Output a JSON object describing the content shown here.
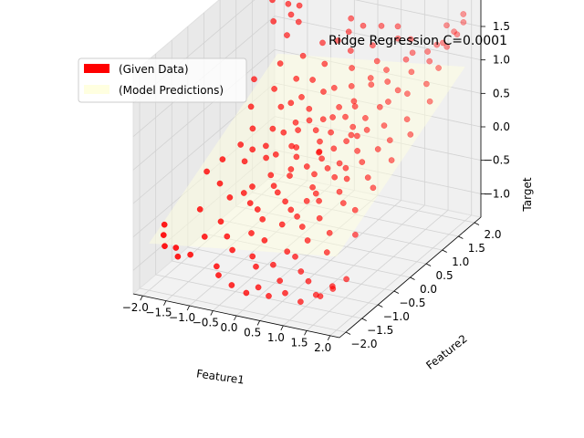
{
  "chart_data": {
    "type": "scatter",
    "projection": "3d",
    "title": "Ridge Regression C=0.0001",
    "xlabel": "Feature1",
    "ylabel": "Feature2",
    "zlabel": "Target",
    "xlim": [
      -2.2,
      2.2
    ],
    "ylim": [
      -2.2,
      2.2
    ],
    "zlim": [
      -1.35,
      1.95
    ],
    "xticks": [
      -2.0,
      -1.5,
      -1.0,
      -0.5,
      0.0,
      0.5,
      1.0,
      1.5,
      2.0
    ],
    "yticks": [
      -2.0,
      -1.5,
      -1.0,
      -0.5,
      0.0,
      0.5,
      1.0,
      1.5,
      2.0
    ],
    "zticks": [
      -1.0,
      -0.5,
      0.0,
      0.5,
      1.0,
      1.5
    ],
    "xtick_labels": [
      "−2.0",
      "−1.5",
      "−1.0",
      "−0.5",
      "0.0",
      "0.5",
      "1.0",
      "1.5",
      "2.0"
    ],
    "ytick_labels": [
      "−2.0",
      "−1.5",
      "−1.0",
      "−0.5",
      "0.0",
      "0.5",
      "1.0",
      "1.5",
      "2.0"
    ],
    "ztick_labels": [
      "−1.0",
      "−0.5",
      "0.0",
      "0.5",
      "1.0",
      "1.5"
    ],
    "grid": true,
    "legend_position": "top-left",
    "legend": [
      {
        "label": "(Given Data)",
        "color": "#ff0000"
      },
      {
        "label": "(Model Predictions)",
        "color": "#ffffe0"
      }
    ],
    "surface": {
      "plane": {
        "intercept": 0.15,
        "coef_x1": 0.1,
        "coef_x2": 0.3
      },
      "x1_range": [
        -2.0,
        2.0
      ],
      "x2_range": [
        -2.0,
        2.0
      ],
      "color": "#ffffe0",
      "alpha": 0.5
    },
    "series": [
      {
        "color": "#ff0000",
        "points": [
          {
            "x1": 0.18,
            "x2": 0.12,
            "y": 0.18
          },
          {
            "x1": -0.35,
            "x2": 0.03,
            "y": 0.22
          },
          {
            "x1": 0.62,
            "x2": 0.47,
            "y": 0.35
          },
          {
            "x1": 0.42,
            "x2": -0.62,
            "y": -0.22
          },
          {
            "x1": -0.72,
            "x2": 0.32,
            "y": 0.25
          },
          {
            "x1": 0.95,
            "x2": 0.18,
            "y": 0.28
          },
          {
            "x1": -0.28,
            "x2": 0.92,
            "y": 0.68
          },
          {
            "x1": 0.12,
            "x2": -0.95,
            "y": -0.48
          },
          {
            "x1": 0.78,
            "x2": -0.28,
            "y": 0.05
          },
          {
            "x1": -0.88,
            "x2": -0.42,
            "y": -0.28
          },
          {
            "x1": 0.33,
            "x2": 0.71,
            "y": 0.48
          },
          {
            "x1": -0.52,
            "x2": -0.78,
            "y": -0.42
          },
          {
            "x1": 1.22,
            "x2": 0.62,
            "y": 0.52
          },
          {
            "x1": -0.15,
            "x2": -0.32,
            "y": -0.05
          },
          {
            "x1": 0.58,
            "x2": 1.15,
            "y": 0.82
          },
          {
            "x1": -1.05,
            "x2": 0.72,
            "y": 0.42
          },
          {
            "x1": 0.85,
            "x2": -0.85,
            "y": -0.32
          },
          {
            "x1": -0.62,
            "x2": 0.55,
            "y": 0.32
          },
          {
            "x1": 0.22,
            "x2": 0.42,
            "y": 0.35
          },
          {
            "x1": 1.45,
            "x2": -0.22,
            "y": 0.12
          },
          {
            "x1": -1.25,
            "x2": -0.12,
            "y": -0.08
          },
          {
            "x1": 0.05,
            "x2": 1.32,
            "y": 0.92
          },
          {
            "x1": 0.68,
            "x2": 0.02,
            "y": 0.12
          },
          {
            "x1": -0.42,
            "x2": -1.12,
            "y": -0.62
          },
          {
            "x1": 1.08,
            "x2": 0.95,
            "y": 0.72
          },
          {
            "x1": -0.95,
            "x2": 1.05,
            "y": 0.72
          },
          {
            "x1": 0.48,
            "x2": -1.32,
            "y": -0.68
          },
          {
            "x1": -0.08,
            "x2": 0.62,
            "y": 0.42
          },
          {
            "x1": 0.92,
            "x2": 0.52,
            "y": 0.45
          },
          {
            "x1": -0.72,
            "x2": -0.72,
            "y": -0.38
          },
          {
            "x1": 0.28,
            "x2": -0.18,
            "y": -0.02
          },
          {
            "x1": -1.42,
            "x2": 0.38,
            "y": 0.18
          },
          {
            "x1": 1.32,
            "x2": 0.28,
            "y": 0.32
          },
          {
            "x1": -0.25,
            "x2": -0.55,
            "y": -0.22
          },
          {
            "x1": 0.72,
            "x2": 1.42,
            "y": 0.95
          },
          {
            "x1": -0.55,
            "x2": 1.35,
            "y": 0.88
          },
          {
            "x1": 0.15,
            "x2": -0.72,
            "y": -0.35
          },
          {
            "x1": 1.02,
            "x2": -0.48,
            "y": -0.05
          },
          {
            "x1": -1.18,
            "x2": -0.68,
            "y": -0.38
          },
          {
            "x1": 0.42,
            "x2": 0.88,
            "y": 0.58
          },
          {
            "x1": -0.38,
            "x2": 0.22,
            "y": 0.12
          },
          {
            "x1": 1.62,
            "x2": 0.75,
            "y": 0.62
          },
          {
            "x1": -0.82,
            "x2": -0.08,
            "y": 0.02
          },
          {
            "x1": 0.55,
            "x2": -0.95,
            "y": -0.45
          },
          {
            "x1": -0.12,
            "x2": 1.02,
            "y": 0.72
          },
          {
            "x1": 0.88,
            "x2": 1.22,
            "y": 0.88
          },
          {
            "x1": -1.35,
            "x2": 0.95,
            "y": 0.55
          },
          {
            "x1": 0.32,
            "x2": -1.52,
            "y": -0.82
          },
          {
            "x1": 1.18,
            "x2": -1.02,
            "y": -0.42
          },
          {
            "x1": -0.62,
            "x2": -1.42,
            "y": -0.78
          },
          {
            "x1": 0.08,
            "x2": 0.28,
            "y": 0.25
          },
          {
            "x1": 1.52,
            "x2": -0.72,
            "y": -0.15
          },
          {
            "x1": -1.55,
            "x2": -0.45,
            "y": -0.32
          },
          {
            "x1": 0.62,
            "x2": 0.32,
            "y": 0.32
          },
          {
            "x1": -0.45,
            "x2": 0.72,
            "y": 0.48
          },
          {
            "x1": 0.98,
            "x2": 1.65,
            "y": 1.05
          },
          {
            "x1": -0.18,
            "x2": 1.62,
            "y": 1.02
          },
          {
            "x1": 0.38,
            "x2": -0.38,
            "y": -0.12
          },
          {
            "x1": -0.98,
            "x2": 0.15,
            "y": 0.08
          },
          {
            "x1": 1.72,
            "x2": 0.12,
            "y": 0.28
          },
          {
            "x1": -0.32,
            "x2": -0.92,
            "y": -0.48
          },
          {
            "x1": 0.75,
            "x2": 0.72,
            "y": 0.52
          },
          {
            "x1": -1.62,
            "x2": 0.62,
            "y": 0.38
          },
          {
            "x1": 0.22,
            "x2": 1.72,
            "y": 1.12
          },
          {
            "x1": 1.28,
            "x2": 1.38,
            "y": 1.02
          },
          {
            "x1": -0.78,
            "x2": 1.62,
            "y": 1.05
          },
          {
            "x1": 0.52,
            "x2": -0.12,
            "y": 0.08
          },
          {
            "x1": -0.05,
            "x2": -1.25,
            "y": -0.62
          },
          {
            "x1": 1.12,
            "x2": 0.08,
            "y": 0.18
          },
          {
            "x1": -1.12,
            "x2": -1.05,
            "y": -0.58
          },
          {
            "x1": 0.12,
            "x2": 0.82,
            "y": 0.55
          },
          {
            "x1": 0.82,
            "x2": -1.18,
            "y": -0.52
          },
          {
            "x1": -0.68,
            "x2": 0.02,
            "y": 0.05
          },
          {
            "x1": 1.42,
            "x2": 1.05,
            "y": 0.85
          },
          {
            "x1": -1.45,
            "x2": 1.28,
            "y": 0.78
          },
          {
            "x1": 0.45,
            "x2": 1.52,
            "y": 1.0
          },
          {
            "x1": -0.22,
            "x2": -0.18,
            "y": -0.02
          },
          {
            "x1": 1.65,
            "x2": -0.35,
            "y": 0.05
          },
          {
            "x1": -1.72,
            "x2": -0.12,
            "y": -0.12
          },
          {
            "x1": 0.02,
            "x2": -1.62,
            "y": -0.85
          },
          {
            "x1": 0.68,
            "x2": -0.62,
            "y": -0.18
          },
          {
            "x1": -0.48,
            "x2": 0.42,
            "y": 0.28
          },
          {
            "x1": 0.95,
            "x2": 0.88,
            "y": 0.65
          },
          {
            "x1": -0.88,
            "x2": 0.78,
            "y": 0.48
          },
          {
            "x1": 0.28,
            "x2": 0.05,
            "y": 0.12
          },
          {
            "x1": -0.12,
            "x2": 0.45,
            "y": 0.32
          },
          {
            "x1": 1.35,
            "x2": -1.35,
            "y": -0.55
          },
          {
            "x1": -1.28,
            "x2": -1.32,
            "y": -0.72
          },
          {
            "x1": 0.58,
            "x2": 0.58,
            "y": 0.42
          },
          {
            "x1": -0.58,
            "x2": -0.28,
            "y": -0.12
          },
          {
            "x1": 1.05,
            "x2": 1.75,
            "y": 1.12
          },
          {
            "x1": -0.38,
            "x2": 1.85,
            "y": 1.18
          },
          {
            "x1": 0.35,
            "x2": -0.82,
            "y": -0.38
          },
          {
            "x1": -1.02,
            "x2": 0.42,
            "y": 0.22
          },
          {
            "x1": 1.85,
            "x2": 0.52,
            "y": 0.52
          },
          {
            "x1": -0.75,
            "x2": -1.72,
            "y": -0.92
          },
          {
            "x1": 0.18,
            "x2": 1.12,
            "y": 0.75
          },
          {
            "x1": 0.88,
            "x2": -0.08,
            "y": 0.12
          },
          {
            "x1": -1.52,
            "x2": 0.15,
            "y": 0.02
          },
          {
            "x1": 0.65,
            "x2": 1.88,
            "y": 1.22
          },
          {
            "x1": -0.02,
            "x2": -0.65,
            "y": -0.28
          },
          {
            "x1": 1.22,
            "x2": -0.65,
            "y": -0.12
          },
          {
            "x1": -0.65,
            "x2": 1.12,
            "y": 0.72
          },
          {
            "x1": 0.42,
            "x2": 0.22,
            "y": 0.22
          },
          {
            "x1": -1.22,
            "x2": 0.08,
            "y": 0.02
          },
          {
            "x1": 1.55,
            "x2": 1.55,
            "y": 1.15
          },
          {
            "x1": -1.85,
            "x2": 1.05,
            "y": 0.58
          },
          {
            "x1": 0.25,
            "x2": -1.88,
            "y": -1.02
          },
          {
            "x1": 0.98,
            "x2": -1.62,
            "y": -0.78
          },
          {
            "x1": -0.28,
            "x2": 0.08,
            "y": 0.05
          },
          {
            "x1": 0.78,
            "x2": 0.42,
            "y": 0.38
          },
          {
            "x1": -0.95,
            "x2": -0.58,
            "y": -0.32
          },
          {
            "x1": 1.75,
            "x2": -1.05,
            "y": -0.35
          },
          {
            "x1": -1.68,
            "x2": -0.88,
            "y": -0.55
          },
          {
            "x1": 0.08,
            "x2": 0.68,
            "y": 0.45
          },
          {
            "x1": 0.52,
            "x2": -0.48,
            "y": -0.15
          },
          {
            "x1": -0.42,
            "x2": -0.42,
            "y": -0.2
          },
          {
            "x1": 1.15,
            "x2": 1.15,
            "y": 0.82
          },
          {
            "x1": -1.08,
            "x2": 1.45,
            "y": 0.88
          },
          {
            "x1": 0.35,
            "x2": 0.95,
            "y": 0.62
          },
          {
            "x1": -0.15,
            "x2": -1.48,
            "y": -0.78
          },
          {
            "x1": 1.48,
            "x2": 0.42,
            "y": 0.42
          },
          {
            "x1": -0.72,
            "x2": 0.88,
            "y": 0.55
          },
          {
            "x1": 0.72,
            "x2": -1.42,
            "y": -0.68
          },
          {
            "x1": -1.38,
            "x2": -1.62,
            "y": -0.88
          },
          {
            "x1": 0.15,
            "x2": 0.15,
            "y": 0.15
          },
          {
            "x1": 1.02,
            "x2": -0.25,
            "y": 0.05
          },
          {
            "x1": -0.52,
            "x2": 1.72,
            "y": 1.08
          },
          {
            "x1": 0.62,
            "x2": -1.75,
            "y": -0.92
          },
          {
            "x1": -1.92,
            "x2": -0.32,
            "y": -0.25
          },
          {
            "x1": 1.92,
            "x2": 1.02,
            "y": 0.82
          },
          {
            "x1": -0.35,
            "x2": 0.58,
            "y": 0.38
          },
          {
            "x1": 0.48,
            "x2": 1.28,
            "y": 0.85
          },
          {
            "x1": -0.85,
            "x2": -1.25,
            "y": -0.68
          },
          {
            "x1": 1.25,
            "x2": -1.78,
            "y": -0.82
          },
          {
            "x1": -1.58,
            "x2": 1.68,
            "y": 1.02
          },
          {
            "x1": 0.05,
            "x2": -0.08,
            "y": 0.02
          },
          {
            "x1": -1.78,
            "x2": 1.55,
            "y": 1.25
          },
          {
            "x1": -1.65,
            "x2": 1.82,
            "y": 1.42
          },
          {
            "x1": -1.92,
            "x2": 1.72,
            "y": 1.48
          },
          {
            "x1": -1.48,
            "x2": 1.92,
            "y": 1.38
          },
          {
            "x1": -1.72,
            "x2": 1.95,
            "y": 1.55
          },
          {
            "x1": -1.58,
            "x2": 2.02,
            "y": 1.62
          },
          {
            "x1": -1.82,
            "x2": 1.88,
            "y": 1.72
          },
          {
            "x1": -1.98,
            "x2": 1.82,
            "y": 1.68
          },
          {
            "x1": -1.52,
            "x2": 1.72,
            "y": 1.32
          },
          {
            "x1": -1.38,
            "x2": 1.75,
            "y": 1.22
          },
          {
            "x1": 1.52,
            "x2": 1.82,
            "y": 1.28
          },
          {
            "x1": 1.72,
            "x2": 1.72,
            "y": 1.38
          },
          {
            "x1": 1.92,
            "x2": 1.55,
            "y": 1.42
          },
          {
            "x1": 1.82,
            "x2": 1.92,
            "y": 1.48
          },
          {
            "x1": 1.98,
            "x2": 1.78,
            "y": 1.52
          },
          {
            "x1": 2.02,
            "x2": 1.92,
            "y": 1.65
          },
          {
            "x1": 1.95,
            "x2": 2.02,
            "y": 1.72
          },
          {
            "x1": 1.62,
            "x2": 1.98,
            "y": 1.52
          },
          {
            "x1": 1.88,
            "x2": 1.35,
            "y": 1.18
          },
          {
            "x1": 1.42,
            "x2": 1.68,
            "y": 1.22
          },
          {
            "x1": 1.78,
            "x2": 1.12,
            "y": 1.02
          },
          {
            "x1": -1.88,
            "x2": -1.72,
            "y": -0.62
          },
          {
            "x1": -1.72,
            "x2": -1.92,
            "y": -0.68
          },
          {
            "x1": -1.98,
            "x2": -1.55,
            "y": -0.55
          },
          {
            "x1": -1.55,
            "x2": -1.82,
            "y": -0.72
          },
          {
            "x1": -1.42,
            "x2": -1.95,
            "y": -0.78
          },
          {
            "x1": 1.82,
            "x2": -1.85,
            "y": -0.82
          },
          {
            "x1": 1.62,
            "x2": -1.95,
            "y": -0.92
          },
          {
            "x1": 1.95,
            "x2": -1.62,
            "y": -0.75
          },
          {
            "x1": 1.48,
            "x2": -1.88,
            "y": -0.95
          },
          {
            "x1": 1.72,
            "x2": -1.72,
            "y": -0.85
          },
          {
            "x1": 1.22,
            "x2": -1.98,
            "y": -1.05
          },
          {
            "x1": 0.02,
            "x2": -1.92,
            "y": -1.12
          },
          {
            "x1": -0.25,
            "x2": -1.98,
            "y": -1.02
          },
          {
            "x1": 0.52,
            "x2": -1.95,
            "y": -1.08
          },
          {
            "x1": -0.62,
            "x2": -1.85,
            "y": -0.98
          },
          {
            "x1": 0.85,
            "x2": -1.92,
            "y": -1.0
          },
          {
            "x1": 0.25,
            "x2": 1.95,
            "y": 1.32
          },
          {
            "x1": -0.12,
            "x2": 1.92,
            "y": 1.28
          },
          {
            "x1": 0.58,
            "x2": 1.98,
            "y": 1.35
          },
          {
            "x1": -0.42,
            "x2": 1.98,
            "y": 1.32
          },
          {
            "x1": 0.92,
            "x2": 1.88,
            "y": 1.25
          }
        ]
      }
    ]
  }
}
